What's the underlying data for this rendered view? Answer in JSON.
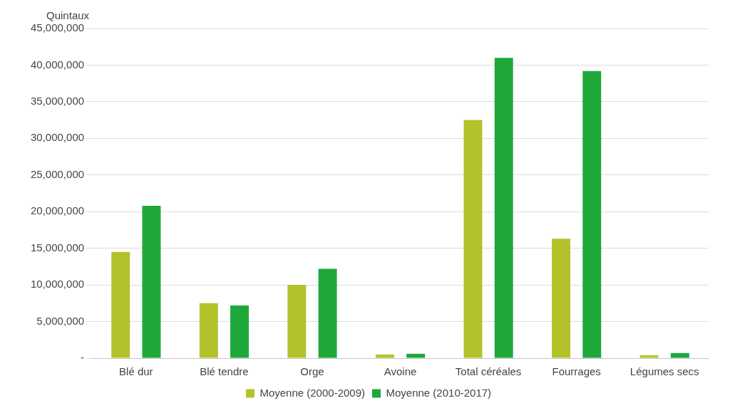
{
  "chart_data": {
    "type": "bar",
    "ylabel": "Quintaux",
    "categories": [
      "Blé dur",
      "Blé tendre",
      "Orge",
      "Avoine",
      "Total céréales",
      "Fourrages",
      "Légumes secs"
    ],
    "series": [
      {
        "name": "Moyenne (2000-2009)",
        "color": "#b3c22a",
        "values": [
          14500000,
          7500000,
          10000000,
          500000,
          32500000,
          16300000,
          400000
        ]
      },
      {
        "name": "Moyenne (2010-2017)",
        "color": "#1ea83a",
        "values": [
          20800000,
          7200000,
          12200000,
          600000,
          41000000,
          39200000,
          700000
        ]
      }
    ],
    "ylim": [
      0,
      45000000
    ],
    "yticks": [
      {
        "value": 0,
        "label": "-"
      },
      {
        "value": 5000000,
        "label": "5,000,000"
      },
      {
        "value": 10000000,
        "label": "10,000,000"
      },
      {
        "value": 15000000,
        "label": "15,000,000"
      },
      {
        "value": 20000000,
        "label": "20,000,000"
      },
      {
        "value": 25000000,
        "label": "25,000,000"
      },
      {
        "value": 30000000,
        "label": "30,000,000"
      },
      {
        "value": 35000000,
        "label": "35,000,000"
      },
      {
        "value": 40000000,
        "label": "40,000,000"
      },
      {
        "value": 45000000,
        "label": "45,000,000"
      }
    ],
    "grid": "y",
    "legend": "bottom"
  }
}
